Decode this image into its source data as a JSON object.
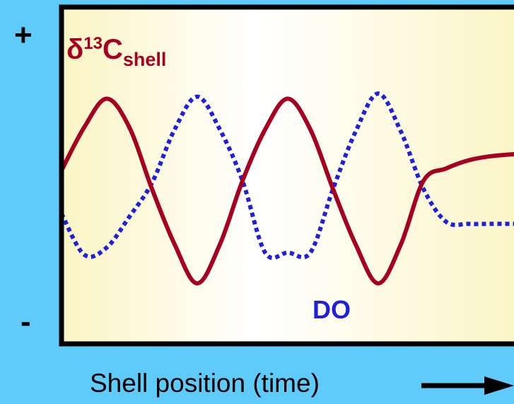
{
  "chart_data": {
    "type": "line",
    "xlabel": "Shell position (time)",
    "ylabel_top": "+",
    "ylabel_bottom": "-",
    "ylim": [
      -1,
      1
    ],
    "x": [
      0,
      2,
      4,
      6,
      8,
      10,
      12,
      14,
      16,
      18,
      20,
      22,
      24,
      26,
      28,
      30,
      32,
      34,
      36,
      38,
      40
    ],
    "series": [
      {
        "name_parts": {
          "delta": "δ",
          "mass": "13",
          "element": "C",
          "subscript": "shell"
        },
        "color": "#a50021",
        "style": "solid",
        "values": [
          0.2,
          0.62,
          0.9,
          0.62,
          0.02,
          -0.52,
          -0.9,
          -0.52,
          0.1,
          0.6,
          0.9,
          0.6,
          0.02,
          -0.52,
          -0.9,
          -0.52,
          0.1,
          0.22,
          0.3,
          0.34,
          0.36
        ]
      },
      {
        "name": "DO",
        "color": "#2020d8",
        "style": "dotted",
        "values": [
          -0.22,
          -0.62,
          -0.55,
          -0.25,
          0.08,
          0.6,
          0.92,
          0.6,
          0.1,
          -0.6,
          -0.6,
          -0.6,
          0.02,
          0.58,
          0.95,
          0.58,
          0.02,
          -0.3,
          -0.32,
          -0.32,
          -0.32
        ]
      }
    ]
  },
  "colors": {
    "background": "#5ecbfb",
    "plot_gradient_left": "#fbf5c4",
    "plot_gradient_mid": "#ffffff",
    "plot_gradient_right": "#fbf5c4",
    "frame": "#000000",
    "arrow": "#000000"
  }
}
